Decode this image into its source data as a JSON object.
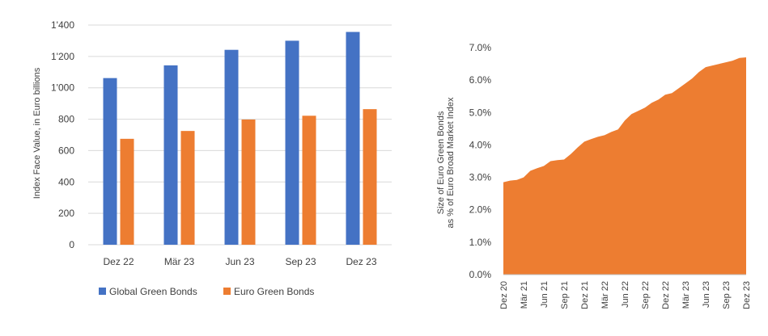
{
  "chart_data": [
    {
      "type": "bar",
      "title": "",
      "xlabel": "",
      "ylabel": "Index Face Value, in Euro billions",
      "categories": [
        "Dez 22",
        "Mär 23",
        "Jun 23",
        "Sep 23",
        "Dez 23"
      ],
      "series": [
        {
          "name": "Global Green Bonds",
          "color": "#4472C4",
          "values": [
            1062,
            1143,
            1242,
            1300,
            1356
          ]
        },
        {
          "name": "Euro Green Bonds",
          "color": "#ED7D31",
          "values": [
            675,
            725,
            798,
            822,
            864
          ]
        }
      ],
      "yticks": [
        "0",
        "200",
        "400",
        "600",
        "800",
        "1'000",
        "1'200",
        "1'400"
      ],
      "ylim": [
        0,
        1400
      ],
      "grid": true,
      "legend_position": "bottom-left"
    },
    {
      "type": "area",
      "title": "",
      "xlabel": "",
      "ylabel_lines": [
        "Size of Euro Green Bonds",
        "as % of Euro Broad Market Index"
      ],
      "color": "#ED7D31",
      "xtick_labels": [
        "Dez 20",
        "Mär 21",
        "Jun 21",
        "Sep 21",
        "Dez 21",
        "Mär 22",
        "Jun 22",
        "Sep 22",
        "Dez 22",
        "Mär 23",
        "Jun 23",
        "Sep 23",
        "Dez 23"
      ],
      "yticks": [
        "0.0%",
        "1.0%",
        "2.0%",
        "3.0%",
        "4.0%",
        "5.0%",
        "6.0%",
        "7.0%"
      ],
      "ylim": [
        0,
        7
      ],
      "grid": false,
      "y_values": [
        2.85,
        2.9,
        2.92,
        3.0,
        3.2,
        3.28,
        3.35,
        3.5,
        3.53,
        3.55,
        3.72,
        3.92,
        4.1,
        4.18,
        4.25,
        4.3,
        4.4,
        4.48,
        4.75,
        4.95,
        5.05,
        5.15,
        5.3,
        5.4,
        5.55,
        5.6,
        5.75,
        5.9,
        6.05,
        6.25,
        6.4,
        6.45,
        6.5,
        6.55,
        6.6,
        6.68,
        6.7
      ]
    }
  ]
}
